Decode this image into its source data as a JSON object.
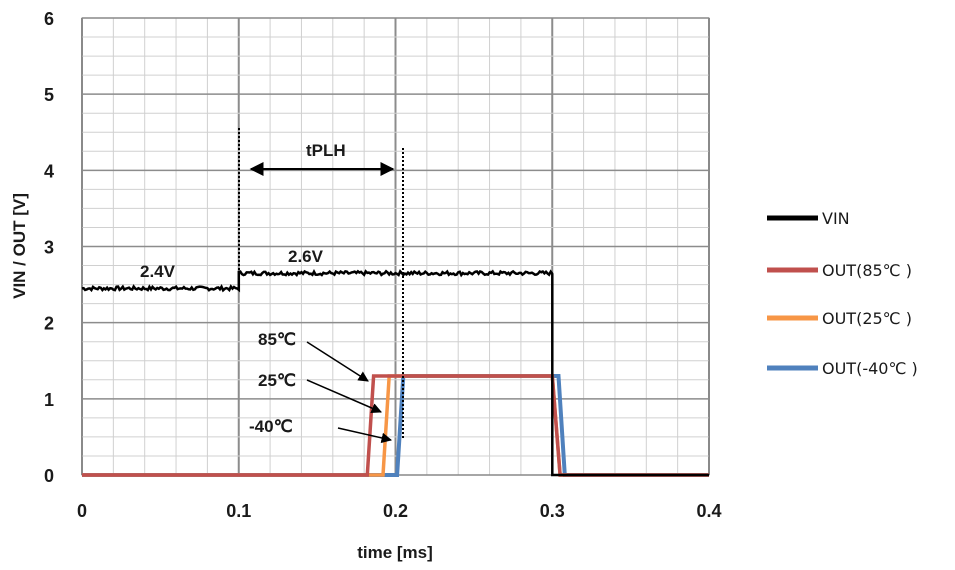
{
  "chart_data": {
    "type": "line",
    "title": "",
    "xlabel": "time [ms]",
    "ylabel": "VIN / OUT [V]",
    "xlim": [
      0,
      0.4
    ],
    "ylim": [
      0,
      6
    ],
    "x_ticks": [
      "0",
      "0.1",
      "0.2",
      "0.3",
      "0.4"
    ],
    "y_ticks": [
      "0",
      "1",
      "2",
      "3",
      "4",
      "5",
      "6"
    ],
    "grid": true,
    "legend_position": "right",
    "series": [
      {
        "name": "VIN",
        "color": "#000000",
        "x": [
          0,
          0.1,
          0.1,
          0.3,
          0.3,
          0.4
        ],
        "y": [
          2.45,
          2.45,
          2.65,
          2.65,
          0,
          0
        ]
      },
      {
        "name": "OUT(85℃ )",
        "color": "#c0504d",
        "x": [
          0,
          0.182,
          0.186,
          0.3,
          0.305,
          0.4
        ],
        "y": [
          0,
          0,
          1.3,
          1.3,
          0,
          0
        ]
      },
      {
        "name": "OUT(25℃ )",
        "color": "#f79646",
        "x": [
          0,
          0.192,
          0.196,
          0.3,
          0.305,
          0.4
        ],
        "y": [
          0,
          0,
          1.3,
          1.3,
          0,
          0
        ]
      },
      {
        "name": "OUT(-40℃ )",
        "color": "#4f81bd",
        "x": [
          0,
          0.201,
          0.205,
          0.304,
          0.308,
          0.4
        ],
        "y": [
          0,
          0,
          1.3,
          1.3,
          0,
          0
        ]
      }
    ],
    "annotations": {
      "vin_low": "2.4V",
      "vin_high": "2.6V",
      "delay": "tPLH",
      "t85": "85℃",
      "t25": "25℃",
      "tm40": "-40℃"
    }
  }
}
